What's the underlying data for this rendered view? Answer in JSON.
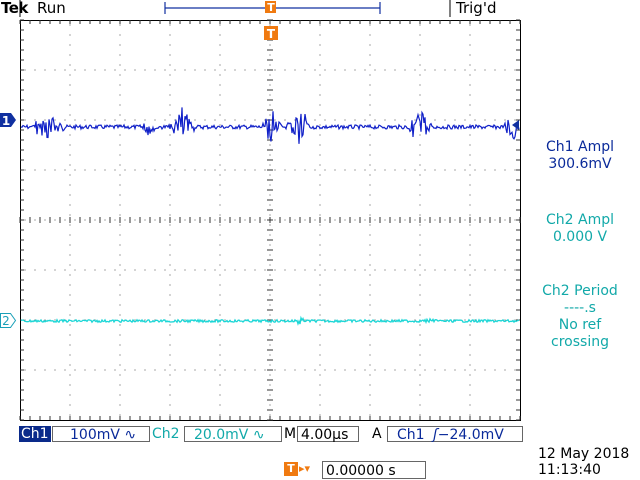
{
  "header": {
    "brand": "Tek",
    "run_state": "Run",
    "trigger_status": "Trig'd",
    "trigger_marker": "T"
  },
  "channels": {
    "ch1_marker": "1",
    "ch2_marker": "2",
    "ch1_color": "#1020c8",
    "ch2_color": "#1ad6d6"
  },
  "measurements": {
    "m1": {
      "title": "Ch1 Ampl",
      "value": "300.6mV"
    },
    "m2": {
      "title": "Ch2 Ampl",
      "value": "0.000 V"
    },
    "m3": {
      "title": "Ch2 Period",
      "value": "----.s",
      "note1": "No ref",
      "note2": "crossing"
    }
  },
  "status_bar": {
    "ch1_label": "Ch1",
    "ch1_scale": "100mV",
    "ch1_coupling": "∿",
    "ch2_label": "Ch2",
    "ch2_scale": "20.0mV",
    "ch2_coupling": "∿",
    "timebase_label": "M",
    "timebase": "4.00µs",
    "trigger_mode": "A",
    "trigger_source": "Ch1",
    "trigger_slope": "ʃ",
    "trigger_level": "−24.0mV",
    "trigger_position_icon": "T",
    "trigger_position_arrow": "▸▾",
    "trigger_position": "0.00000 s",
    "date": "12 May 2018",
    "time": "11:13:40"
  }
}
